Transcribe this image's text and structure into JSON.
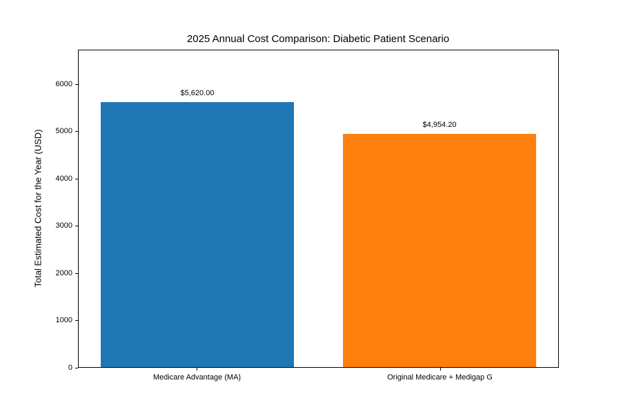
{
  "chart_data": {
    "type": "bar",
    "title": "2025 Annual Cost Comparison: Diabetic Patient Scenario",
    "categories": [
      "Medicare Advantage (MA)",
      "Original Medicare + Medigap G"
    ],
    "values": [
      5620.0,
      4954.2
    ],
    "value_labels": [
      "$5,620.00",
      "$4,954.20"
    ],
    "bar_colors": [
      "#1f77b4",
      "#ff7f0e"
    ],
    "xlabel": "",
    "ylabel": "Total Estimated Cost for the Year (USD)",
    "ylim": [
      0,
      6722
    ],
    "yticks": [
      0,
      1000,
      2000,
      3000,
      4000,
      5000,
      6000
    ],
    "grid": false,
    "legend": "none",
    "plot_background": "#ffffff",
    "figure_background": "#ffffff",
    "spine_color": "#000000",
    "text_color": "#000000"
  }
}
